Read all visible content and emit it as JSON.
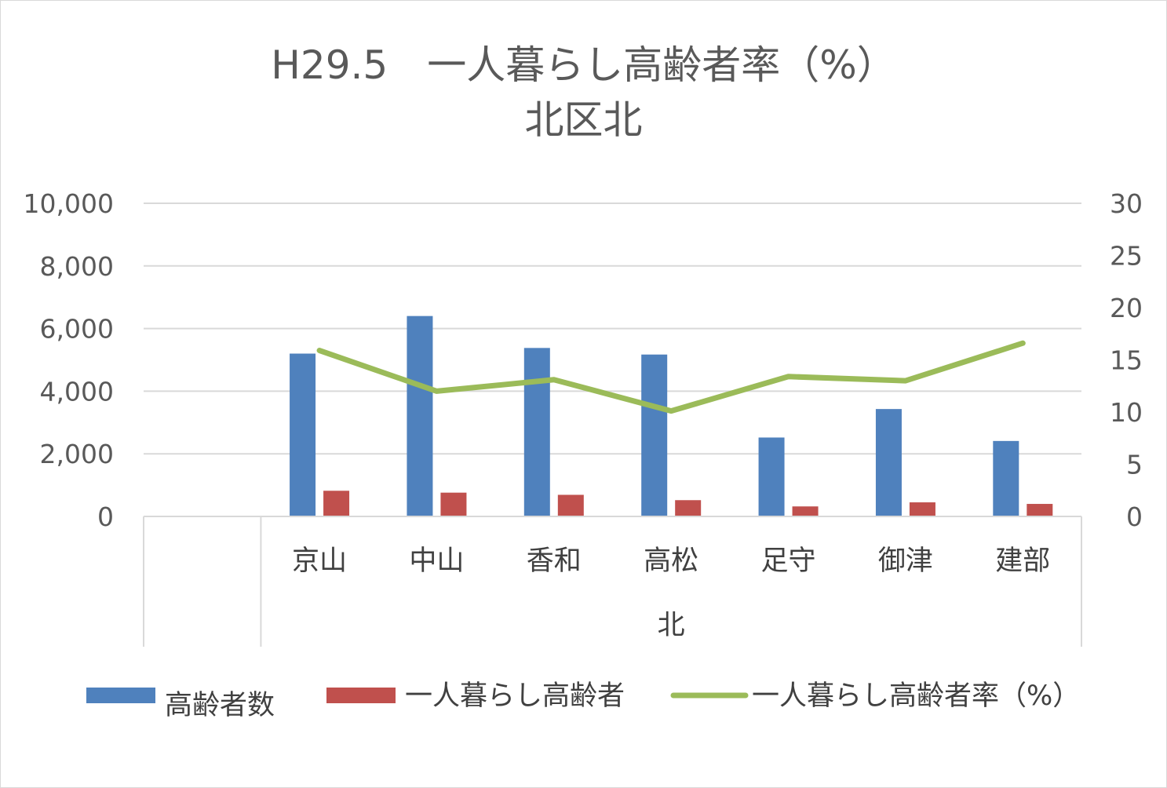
{
  "chart_data": {
    "type": "bar",
    "title": "H29.5　一人暮らし高齢者率（%）",
    "subtitle": "北区北",
    "group_label": "北",
    "categories": [
      "",
      "京山",
      "中山",
      "香和",
      "高松",
      "足守",
      "御津",
      "建部"
    ],
    "y_left": {
      "min": 0,
      "max": 10000,
      "step": 2000,
      "tick_labels": [
        "0",
        "2,000",
        "4,000",
        "6,000",
        "8,000",
        "10,000"
      ]
    },
    "y_right": {
      "min": 0,
      "max": 30,
      "step": 5,
      "tick_labels": [
        "0",
        "5",
        "10",
        "15",
        "20",
        "25",
        "30"
      ]
    },
    "grid": true,
    "legend_position": "bottom",
    "series": [
      {
        "name": "高齢者数",
        "type": "bar",
        "axis": "left",
        "color": "#4f81bd",
        "values": [
          null,
          5200,
          6400,
          5380,
          5170,
          2520,
          3430,
          2410
        ]
      },
      {
        "name": "一人暮らし高齢者",
        "type": "bar",
        "axis": "left",
        "color": "#c0504d",
        "values": [
          null,
          820,
          760,
          690,
          520,
          320,
          450,
          400
        ]
      },
      {
        "name": "一人暮らし高齢者率（%）",
        "type": "line",
        "axis": "right",
        "color": "#9bbb59",
        "values": [
          null,
          15.9,
          12.0,
          13.1,
          10.1,
          13.4,
          13.0,
          16.6
        ]
      }
    ]
  }
}
